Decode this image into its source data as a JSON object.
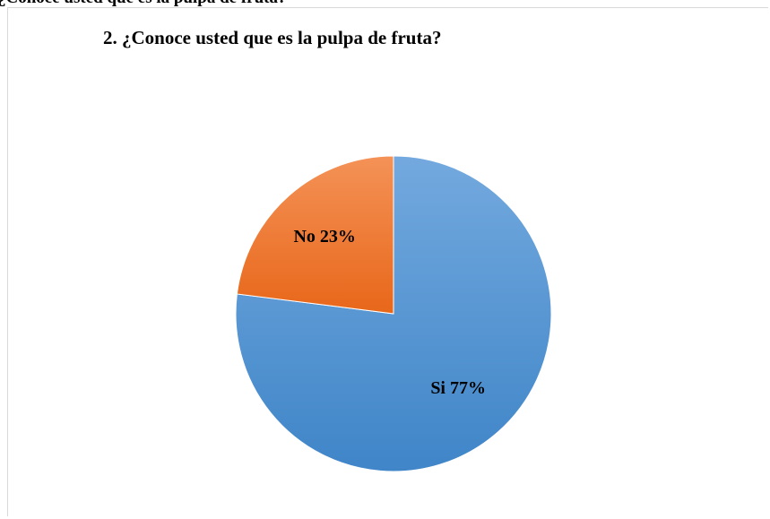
{
  "clipped_heading": "2. ¿Conoce usted que es la pulpa de fruta?",
  "chart_data": {
    "type": "pie",
    "title": "2. ¿Conoce usted que es la pulpa de fruta?",
    "categories": [
      "Si",
      "No"
    ],
    "values": [
      77,
      23
    ],
    "data_labels": [
      "Si 77%",
      "No 23%"
    ],
    "colors": [
      "#5b9bd5",
      "#ed7d31"
    ],
    "legend": "none"
  }
}
